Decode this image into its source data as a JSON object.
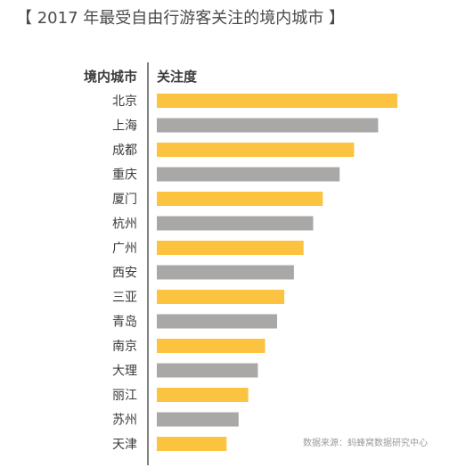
{
  "title": "【 2017 年最受自由行游客关注的境内城市 】",
  "source": "数据来源：蚂蜂窝数据研究中心",
  "colors": {
    "odd": "#fbc33f",
    "even": "#aaa8a6",
    "axis": "#555555"
  },
  "chart_data": {
    "type": "bar",
    "orientation": "horizontal",
    "category_header": "境内城市",
    "value_header": "关注度",
    "categories": [
      "北京",
      "上海",
      "成都",
      "重庆",
      "厦门",
      "杭州",
      "广州",
      "西安",
      "三亚",
      "青岛",
      "南京",
      "大理",
      "丽江",
      "苏州",
      "天津"
    ],
    "values": [
      100,
      92,
      82,
      76,
      69,
      65,
      61,
      57,
      53,
      50,
      45,
      42,
      38,
      34,
      29
    ],
    "xlim": [
      0,
      100
    ],
    "grid": false,
    "legend": "none"
  }
}
